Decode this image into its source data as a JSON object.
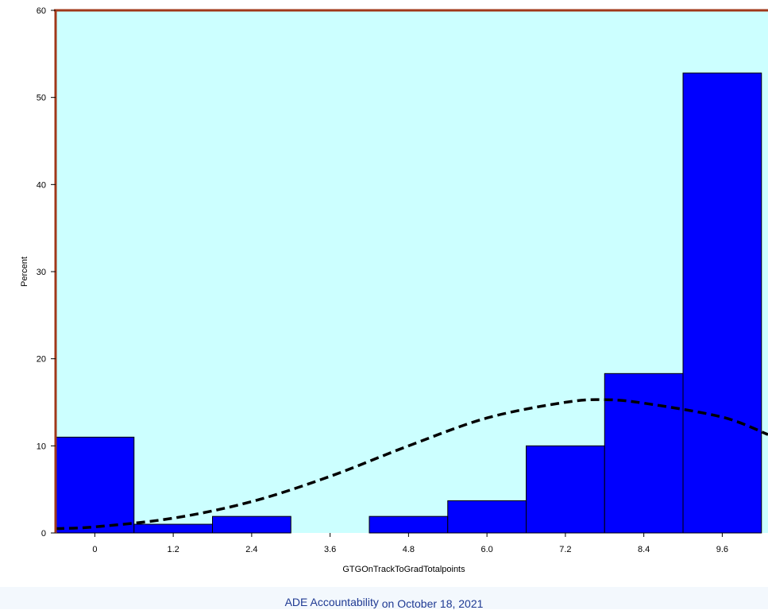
{
  "chart_data": {
    "type": "bar",
    "title": "",
    "xlabel": "GTGOnTrackToGradTotalpoints",
    "ylabel": "Percent",
    "x_tick_labels": [
      "0",
      "1.2",
      "2.4",
      "3.6",
      "4.8",
      "6.0",
      "7.2",
      "8.4",
      "9.6"
    ],
    "y_tick_labels": [
      "0",
      "10",
      "20",
      "30",
      "40",
      "50",
      "60"
    ],
    "ylim": [
      0,
      60
    ],
    "xlim": [
      -0.6,
      10.3
    ],
    "bin_width": 1.2,
    "categories": [
      "0",
      "1.2",
      "2.4",
      "3.6",
      "4.8",
      "6.0",
      "7.2",
      "8.4",
      "9.6"
    ],
    "values": [
      11.0,
      1.0,
      1.9,
      0,
      1.9,
      3.7,
      10.0,
      18.3,
      52.8
    ],
    "density_curve": {
      "style": "dashed",
      "x": [
        -0.6,
        0.0,
        1.2,
        2.4,
        3.6,
        4.8,
        6.0,
        7.2,
        7.8,
        8.4,
        9.6,
        10.3
      ],
      "y": [
        0.5,
        0.7,
        1.7,
        3.6,
        6.5,
        10.0,
        13.2,
        15.0,
        15.3,
        14.9,
        13.3,
        11.3
      ]
    },
    "grid": false,
    "colors": {
      "plot_background": "#ccffff",
      "bar_fill": "#0000ff",
      "bar_stroke": "#000000",
      "axis": "#a0381a",
      "curve": "#000000"
    }
  },
  "footer": {
    "source": "ADE Accountability",
    "on": "on",
    "date": "October 18, 2021"
  }
}
